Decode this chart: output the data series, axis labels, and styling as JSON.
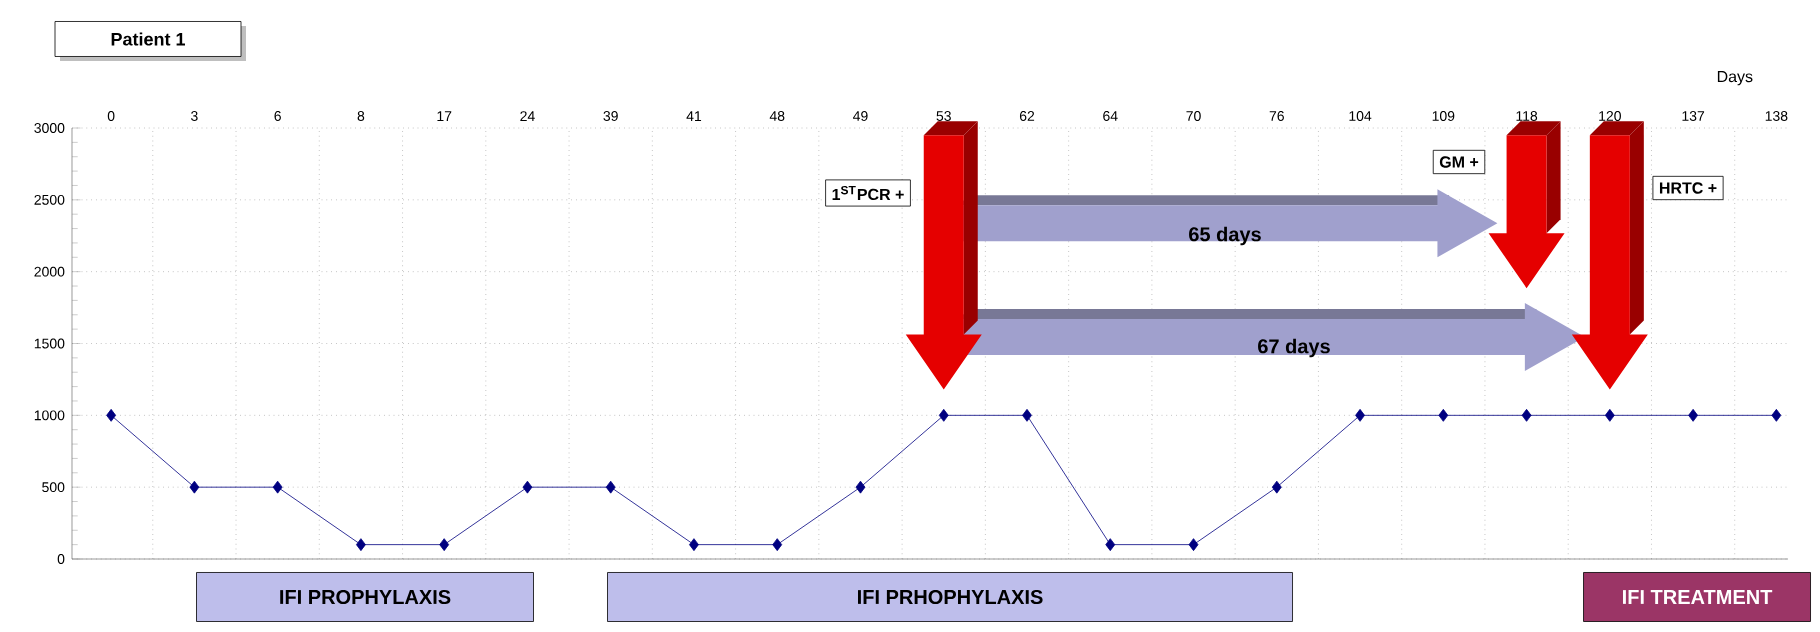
{
  "chart_data": {
    "type": "line",
    "title": "Patient 1",
    "xlabel": "Days",
    "categories": [
      "0",
      "3",
      "6",
      "8",
      "17",
      "24",
      "39",
      "41",
      "48",
      "49",
      "53",
      "62",
      "64",
      "70",
      "76",
      "104",
      "109",
      "118",
      "120",
      "137",
      "138"
    ],
    "values": [
      1000,
      500,
      500,
      100,
      100,
      500,
      500,
      100,
      100,
      500,
      1000,
      1000,
      100,
      100,
      500,
      1000,
      1000,
      1000,
      1000,
      1000,
      1000
    ],
    "color": "#000080",
    "marker": "diamond",
    "grid": true,
    "ylim": [
      0,
      3000
    ],
    "yticks": [
      0,
      500,
      1000,
      1500,
      2000,
      2500,
      3000
    ],
    "annotations": [
      "1$^{ST}$PCR +",
      "GM +",
      "HRTC +",
      "65 days",
      "67 days",
      "IFI PROPHYLAXIS",
      "IFI PRHOPHYLAXIS",
      "IFI TREATMENT"
    ]
  }
}
